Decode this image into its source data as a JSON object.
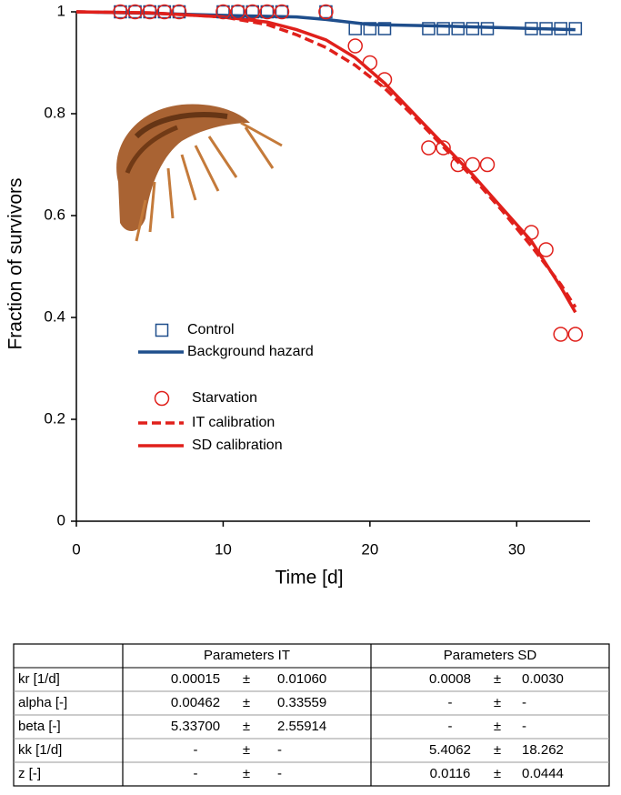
{
  "chart_data": {
    "type": "scatter",
    "xlabel": "Time [d]",
    "ylabel": "Fraction of survivors",
    "xlim": [
      0,
      35
    ],
    "xticks": [
      0,
      10,
      20,
      30
    ],
    "ylim": [
      0,
      1
    ],
    "yticks": [
      0,
      0.2,
      0.4,
      0.6,
      0.8,
      1
    ],
    "series": [
      {
        "name": "Control",
        "mark": "square",
        "color": "#1f4e8c",
        "x": [
          3,
          4,
          5,
          6,
          7,
          10,
          11,
          12,
          13,
          14,
          17,
          19,
          20,
          21,
          24,
          25,
          26,
          27,
          28,
          31,
          32,
          33,
          34
        ],
        "values": [
          1,
          1,
          1,
          1,
          1,
          1,
          1,
          1,
          1,
          1,
          1,
          0.967,
          0.967,
          0.967,
          0.967,
          0.967,
          0.967,
          0.967,
          0.967,
          0.967,
          0.967,
          0.967,
          0.967
        ]
      },
      {
        "name": "Background hazard",
        "mark": "line",
        "dashed": false,
        "color": "#1f4e8c",
        "x": [
          0,
          5,
          10,
          15,
          17,
          20,
          25,
          30,
          34
        ],
        "values": [
          1,
          0.997,
          0.993,
          0.99,
          0.985,
          0.975,
          0.972,
          0.968,
          0.965
        ]
      },
      {
        "name": "Starvation",
        "mark": "circle",
        "color": "#e0201b",
        "x": [
          3,
          4,
          5,
          6,
          7,
          10,
          11,
          12,
          13,
          14,
          17,
          19,
          20,
          21,
          24,
          25,
          26,
          27,
          28,
          31,
          32,
          33,
          34
        ],
        "values": [
          1,
          1,
          1,
          1,
          1,
          1,
          1,
          1,
          1,
          1,
          1,
          0.933,
          0.9,
          0.867,
          0.733,
          0.733,
          0.7,
          0.7,
          0.7,
          0.567,
          0.533,
          0.367,
          0.367
        ]
      },
      {
        "name": "IT calibration",
        "mark": "line",
        "dashed": true,
        "color": "#e0201b",
        "x": [
          0,
          5,
          10,
          13,
          15,
          17,
          19,
          21,
          23,
          25,
          27,
          29,
          31,
          33,
          34
        ],
        "values": [
          1,
          0.998,
          0.99,
          0.975,
          0.955,
          0.93,
          0.895,
          0.85,
          0.795,
          0.735,
          0.675,
          0.61,
          0.54,
          0.465,
          0.42
        ]
      },
      {
        "name": "SD calibration",
        "mark": "line",
        "dashed": false,
        "color": "#e0201b",
        "x": [
          0,
          5,
          10,
          13,
          15,
          17,
          19,
          21,
          23,
          25,
          27,
          29,
          31,
          33,
          34
        ],
        "values": [
          1,
          0.998,
          0.99,
          0.98,
          0.965,
          0.945,
          0.91,
          0.86,
          0.8,
          0.74,
          0.68,
          0.615,
          0.55,
          0.46,
          0.41
        ]
      }
    ]
  },
  "table": {
    "headers": [
      "Parameters IT",
      "Parameters SD"
    ],
    "rows": [
      [
        "kr [1/d]",
        "0.00015",
        "±",
        "0.01060",
        "0.0008",
        "±",
        "0.0030"
      ],
      [
        "alpha [-]",
        "0.00462",
        "±",
        "0.33559",
        "-",
        "±",
        "-"
      ],
      [
        "beta [-]",
        "5.33700",
        "±",
        "2.55914",
        "-",
        "±",
        "-"
      ],
      [
        "kk [1/d]",
        "-",
        "±",
        "-",
        "5.4062",
        "±",
        "18.262"
      ],
      [
        "z [-]",
        "-",
        "±",
        "-",
        "0.0116",
        "±",
        "0.0444"
      ]
    ]
  }
}
